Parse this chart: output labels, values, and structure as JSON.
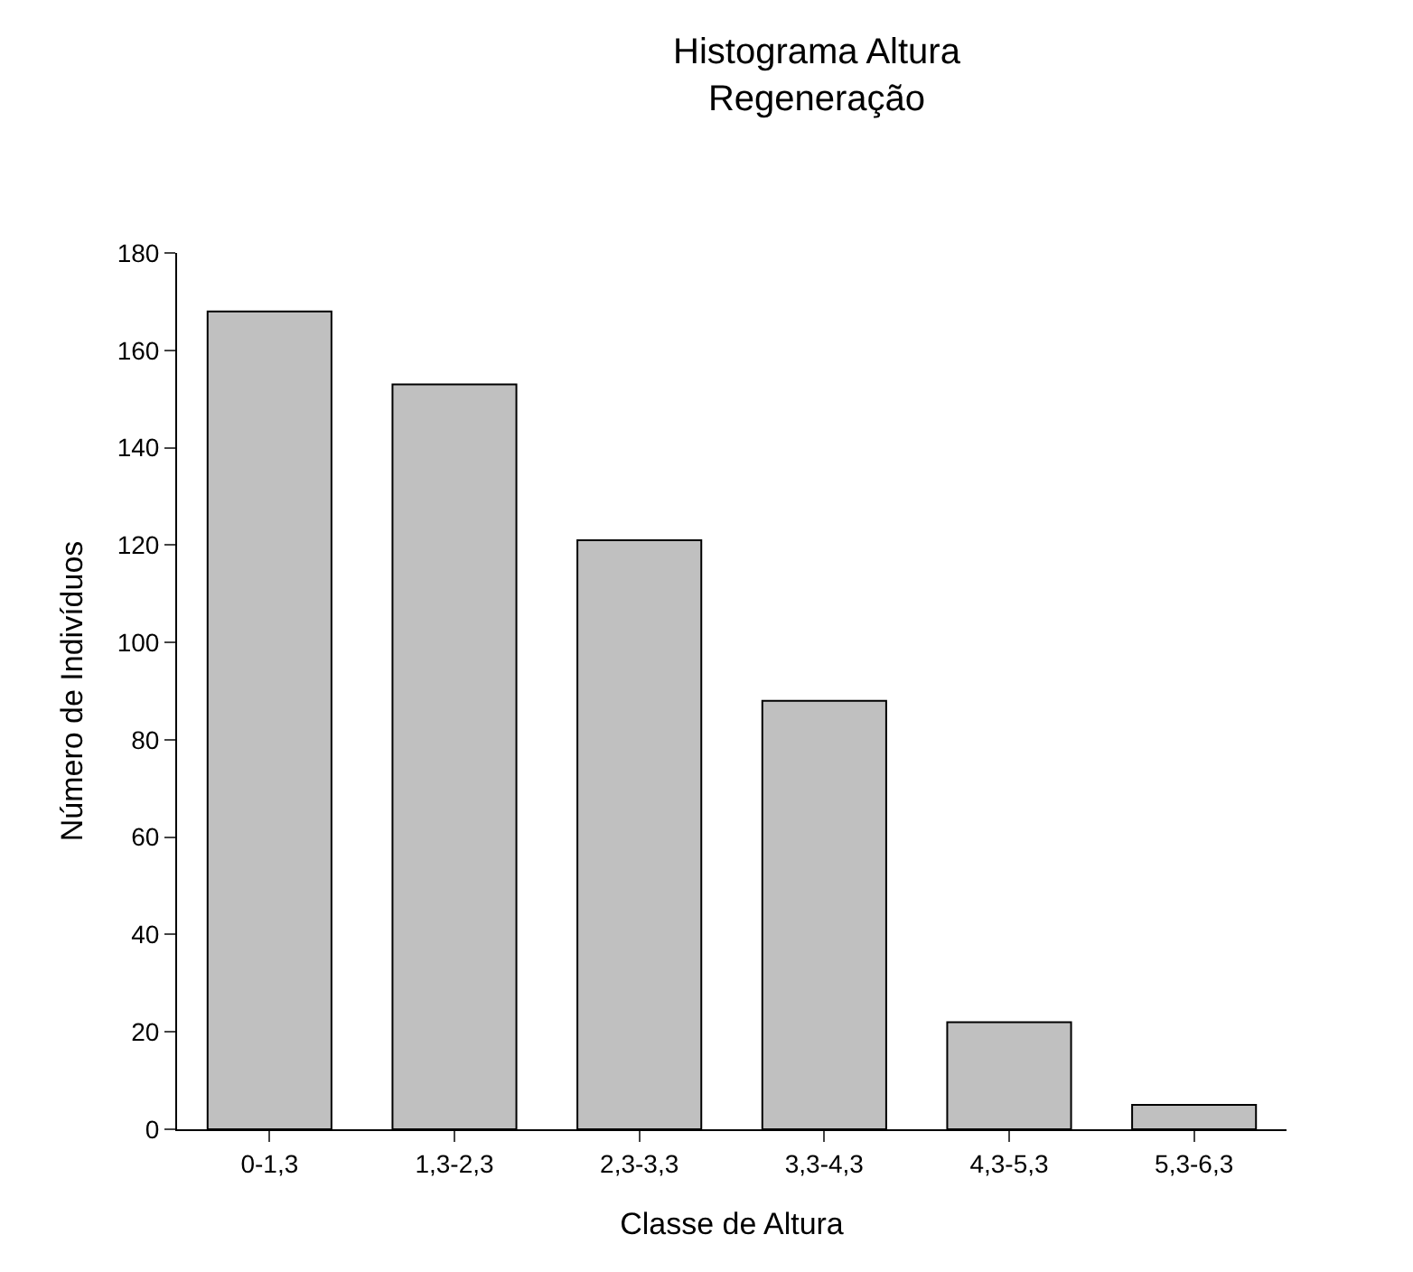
{
  "chart_data": {
    "type": "bar",
    "title": "Histograma Altura\nRegeneração",
    "xlabel": "Classe de Altura",
    "ylabel": "Número de Indivíduos",
    "categories": [
      "0-1,3",
      "1,3-2,3",
      "2,3-3,3",
      "3,3-4,3",
      "4,3-5,3",
      "5,3-6,3"
    ],
    "values": [
      168,
      153,
      121,
      88,
      22,
      5
    ],
    "color": "#c0c0c0",
    "ylim": [
      0,
      180
    ],
    "yticks": [
      0,
      20,
      40,
      60,
      80,
      100,
      120,
      140,
      160,
      180
    ],
    "grid": false,
    "legend": false
  }
}
